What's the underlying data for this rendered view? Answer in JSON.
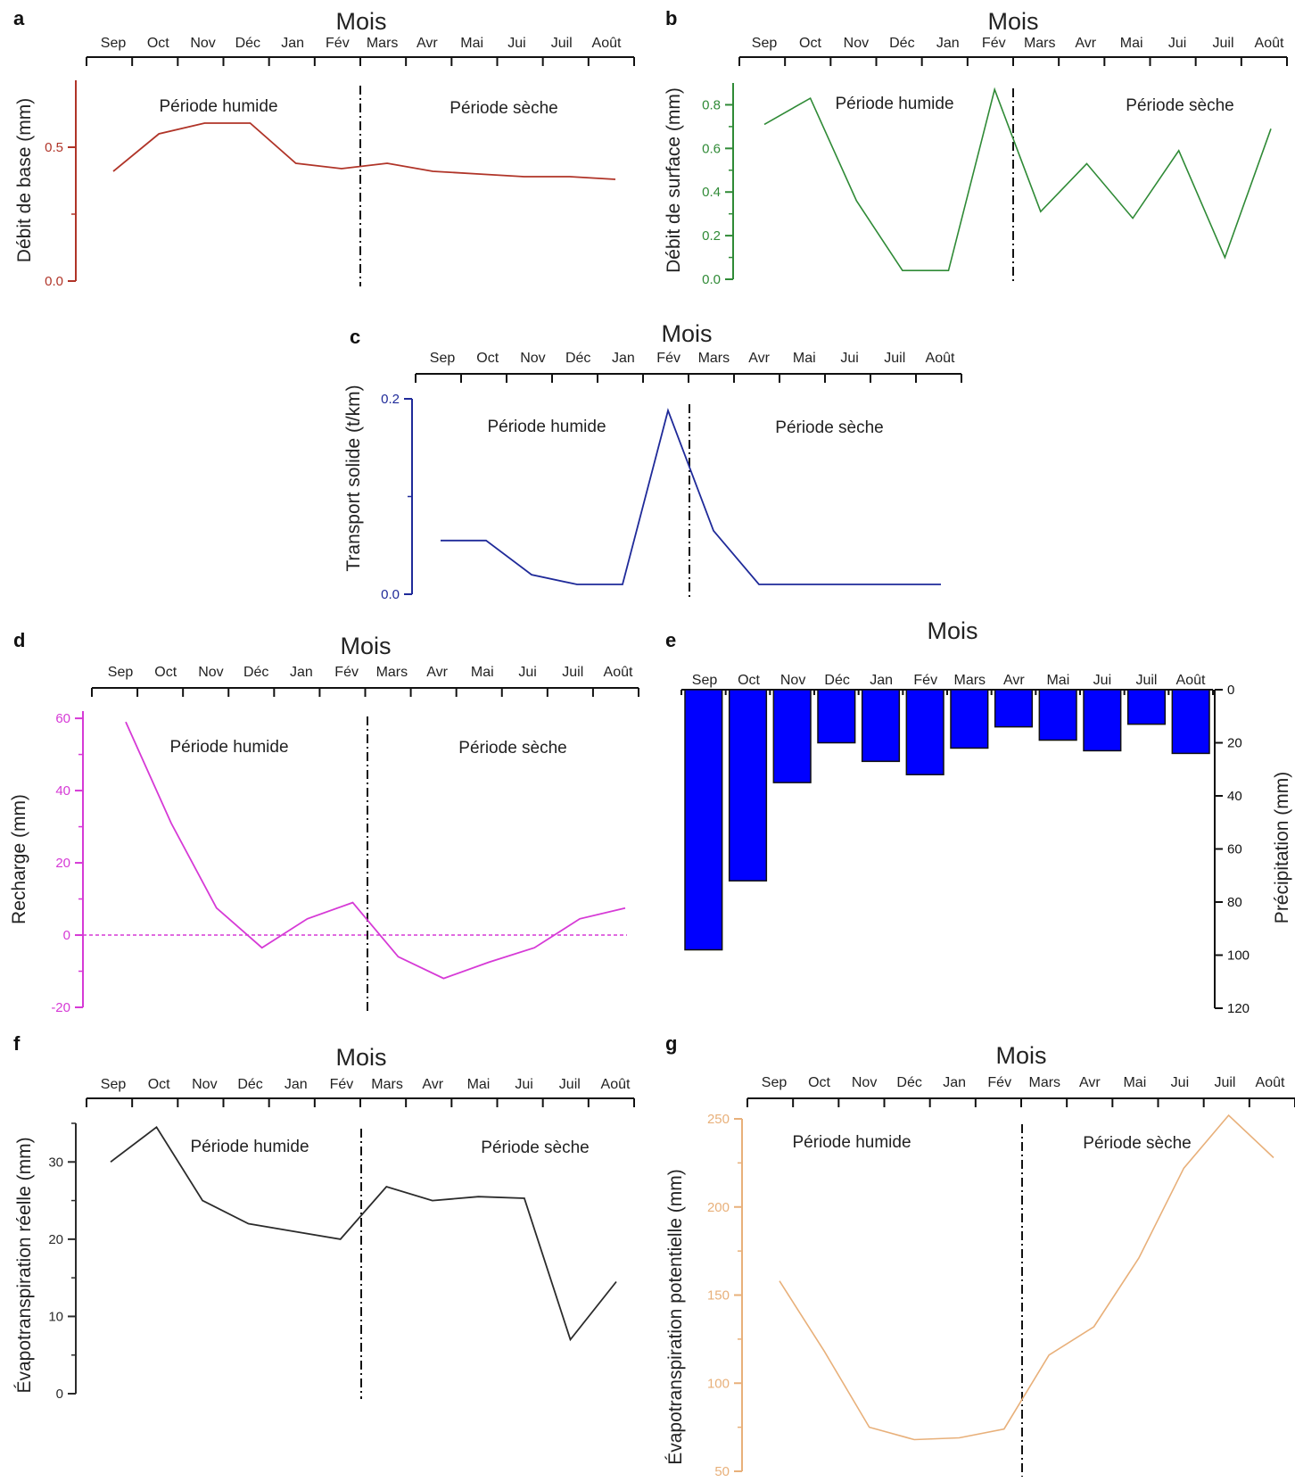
{
  "chart_data": [
    {
      "id": "a",
      "panel_label": "a",
      "type": "line",
      "title": "",
      "xlabel": "Mois",
      "ylabel": "Débit de base (mm)",
      "color": "#b03428",
      "categories": [
        "Sep",
        "Oct",
        "Nov",
        "Déc",
        "Jan",
        "Fév",
        "Mars",
        "Avr",
        "Mai",
        "Jui",
        "Juil",
        "Août"
      ],
      "values": [
        0.41,
        0.55,
        0.59,
        0.59,
        0.44,
        0.42,
        0.44,
        0.41,
        0.4,
        0.39,
        0.39,
        0.38
      ],
      "ylim": [
        0,
        0.75
      ],
      "yticks": [
        {
          "v": 0,
          "label": "0.0"
        },
        {
          "v": 0.5,
          "label": "0.5"
        }
      ],
      "yminor": [
        0.25
      ],
      "periods": {
        "wet": "Période humide",
        "dry": "Période sèche"
      },
      "split_after_index": 5,
      "grid": false
    },
    {
      "id": "b",
      "panel_label": "b",
      "type": "line",
      "title": "",
      "xlabel": "Mois",
      "ylabel": "Débit de surface (mm)",
      "color": "#2f8a36",
      "categories": [
        "Sep",
        "Oct",
        "Nov",
        "Déc",
        "Jan",
        "Fév",
        "Mars",
        "Avr",
        "Mai",
        "Jui",
        "Juil",
        "Août"
      ],
      "values": [
        0.71,
        0.83,
        0.36,
        0.04,
        0.04,
        0.87,
        0.31,
        0.53,
        0.28,
        0.59,
        0.1,
        0.69
      ],
      "ylim": [
        0,
        0.9
      ],
      "yticks": [
        {
          "v": 0,
          "label": "0.0"
        },
        {
          "v": 0.2,
          "label": "0.2"
        },
        {
          "v": 0.4,
          "label": "0.4"
        },
        {
          "v": 0.6,
          "label": "0.6"
        },
        {
          "v": 0.8,
          "label": "0.8"
        }
      ],
      "yminor": [
        0.1,
        0.3,
        0.5,
        0.7
      ],
      "periods": {
        "wet": "Période humide",
        "dry": "Période sèche"
      },
      "split_after_index": 5,
      "grid": false
    },
    {
      "id": "c",
      "panel_label": "c",
      "type": "line",
      "title": "",
      "xlabel": "Mois",
      "ylabel": "Transport solide (t/km)",
      "color": "#1f2a99",
      "categories": [
        "Sep",
        "Oct",
        "Nov",
        "Déc",
        "Jan",
        "Fév",
        "Mars",
        "Avr",
        "Mai",
        "Jui",
        "Juil",
        "Août"
      ],
      "values": [
        0.055,
        0.055,
        0.02,
        0.01,
        0.01,
        0.188,
        0.065,
        0.01,
        0.01,
        0.01,
        0.01,
        0.01
      ],
      "ylim": [
        0,
        0.2
      ],
      "yticks": [
        {
          "v": 0,
          "label": "0.0"
        },
        {
          "v": 0.2,
          "label": "0.2"
        }
      ],
      "yminor": [
        0.1
      ],
      "periods": {
        "wet": "Période humide",
        "dry": "Période sèche"
      },
      "split_after_index": 5,
      "grid": false
    },
    {
      "id": "d",
      "panel_label": "d",
      "type": "line",
      "title": "",
      "xlabel": "Mois",
      "ylabel": "Recharge (mm)",
      "color": "#d63ad6",
      "categories": [
        "Sep",
        "Oct",
        "Nov",
        "Déc",
        "Jan",
        "Fév",
        "Mars",
        "Avr",
        "Mai",
        "Jui",
        "Juil",
        "Août"
      ],
      "values": [
        59,
        31,
        7.5,
        -3.5,
        4.5,
        9,
        -6,
        -12,
        -7.5,
        -3.5,
        4.5,
        7.5
      ],
      "ylim": [
        -20,
        62
      ],
      "yticks": [
        {
          "v": -20,
          "label": "-20"
        },
        {
          "v": 0,
          "label": "0"
        },
        {
          "v": 20,
          "label": "20"
        },
        {
          "v": 40,
          "label": "40"
        },
        {
          "v": 60,
          "label": "60"
        }
      ],
      "yminor": [
        -10,
        10,
        30,
        50
      ],
      "zero_line": true,
      "periods": {
        "wet": "Période humide",
        "dry": "Période sèche"
      },
      "split_after_index": 5,
      "grid": false
    },
    {
      "id": "e",
      "panel_label": "e",
      "type": "bar",
      "title": "",
      "xlabel": "Mois",
      "ylabel": "Précipitation (mm)",
      "color": "#0000ff",
      "categories": [
        "Sep",
        "Oct",
        "Nov",
        "Déc",
        "Jan",
        "Fév",
        "Mars",
        "Avr",
        "Mai",
        "Jui",
        "Juil",
        "Août"
      ],
      "values": [
        98,
        72,
        35,
        20,
        27,
        32,
        22,
        14,
        19,
        23,
        13,
        24
      ],
      "ylim": [
        0,
        120
      ],
      "inverted": true,
      "yticks": [
        {
          "v": 0,
          "label": "0"
        },
        {
          "v": 20,
          "label": "20"
        },
        {
          "v": 40,
          "label": "40"
        },
        {
          "v": 60,
          "label": "60"
        },
        {
          "v": 80,
          "label": "80"
        },
        {
          "v": 100,
          "label": "100"
        },
        {
          "v": 120,
          "label": "120"
        }
      ],
      "grid": false
    },
    {
      "id": "f",
      "panel_label": "f",
      "type": "line",
      "title": "",
      "xlabel": "Mois",
      "ylabel": "Évapotranspiration réelle (mm)",
      "color": "#2b2b2b",
      "categories": [
        "Sep",
        "Oct",
        "Nov",
        "Déc",
        "Jan",
        "Fév",
        "Mars",
        "Avr",
        "Mai",
        "Jui",
        "Juil",
        "Août"
      ],
      "values": [
        30,
        34.5,
        25,
        22,
        21,
        20,
        26.8,
        25,
        25.5,
        25.3,
        7,
        14.5
      ],
      "ylim": [
        0,
        35
      ],
      "yticks": [
        {
          "v": 0,
          "label": "0"
        },
        {
          "v": 10,
          "label": "10"
        },
        {
          "v": 20,
          "label": "20"
        },
        {
          "v": 30,
          "label": "30"
        }
      ],
      "yminor": [
        5,
        15,
        25,
        35
      ],
      "periods": {
        "wet": "Période humide",
        "dry": "Période sèche"
      },
      "split_after_index": 5,
      "grid": false
    },
    {
      "id": "g",
      "panel_label": "g",
      "type": "line",
      "title": "",
      "xlabel": "Mois",
      "ylabel": "Évapotranspiration potentielle (mm)",
      "color": "#e8b07a",
      "categories": [
        "Sep",
        "Oct",
        "Nov",
        "Déc",
        "Jan",
        "Fév",
        "Mars",
        "Avr",
        "Mai",
        "Jui",
        "Juil",
        "Août"
      ],
      "values": [
        158,
        118,
        75,
        68,
        69,
        74,
        116,
        132,
        171,
        222,
        252,
        228
      ],
      "ylim": [
        50,
        250
      ],
      "yticks": [
        {
          "v": 50,
          "label": "50"
        },
        {
          "v": 100,
          "label": "100"
        },
        {
          "v": 150,
          "label": "150"
        },
        {
          "v": 200,
          "label": "200"
        },
        {
          "v": 250,
          "label": "250"
        }
      ],
      "yminor": [
        75,
        125,
        175,
        225
      ],
      "periods": {
        "wet": "Période humide",
        "dry": "Période sèche"
      },
      "split_after_index": 5,
      "grid": false
    }
  ]
}
